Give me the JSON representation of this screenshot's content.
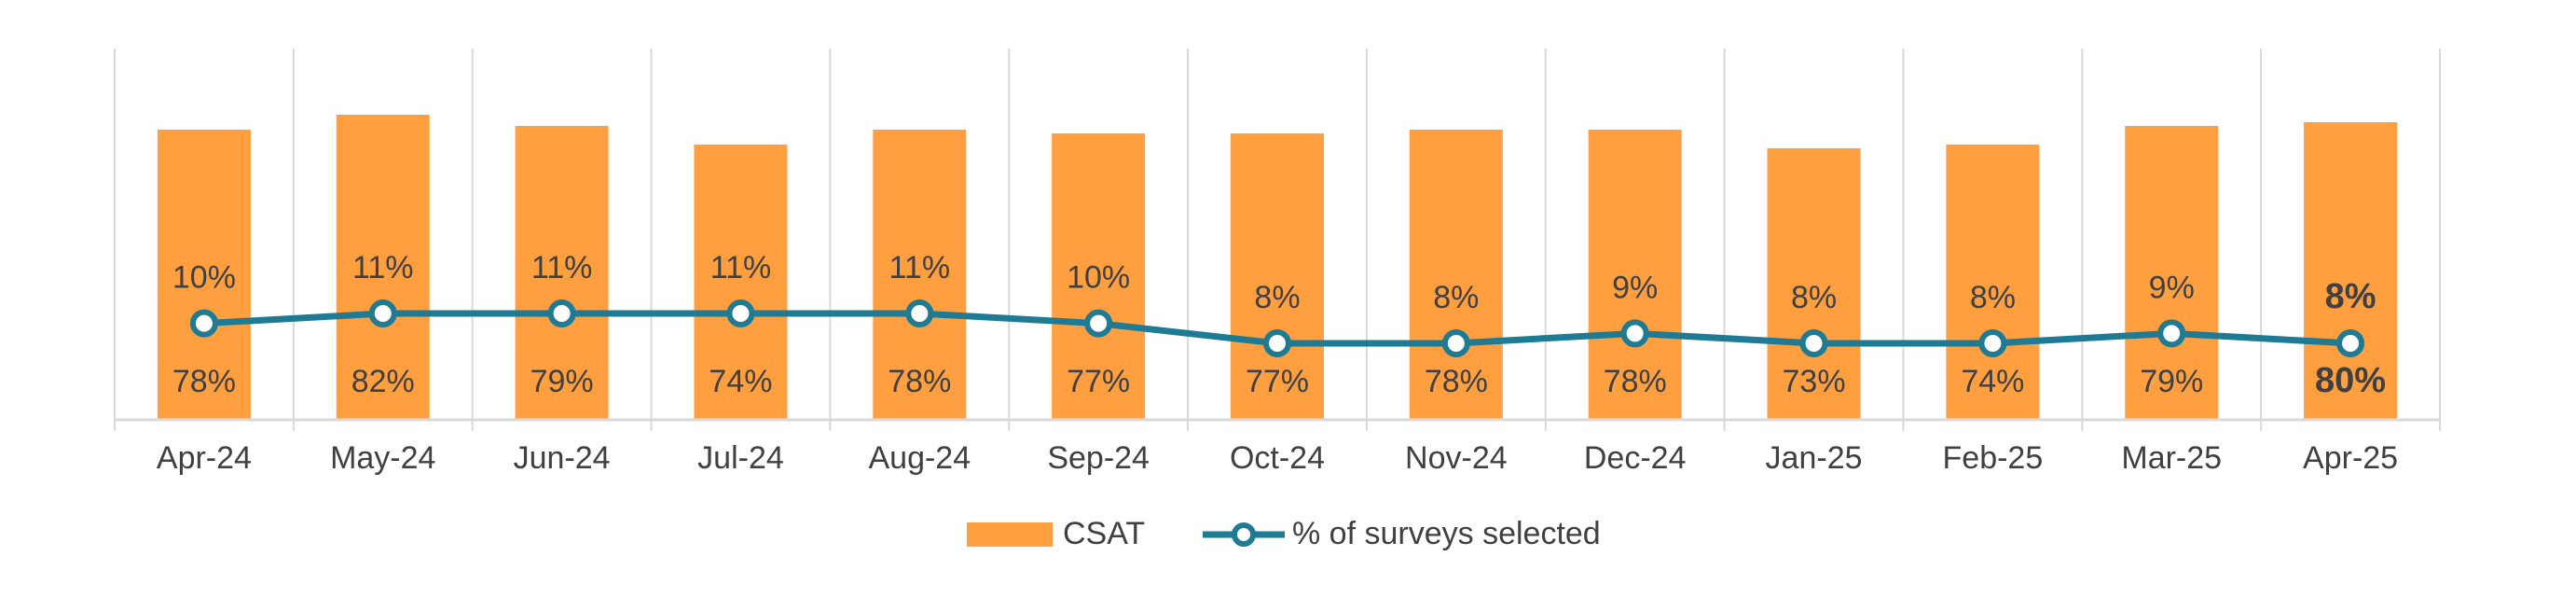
{
  "chart_data": {
    "type": "bar+line",
    "categories": [
      "Apr-24",
      "May-24",
      "Jun-24",
      "Jul-24",
      "Aug-24",
      "Sep-24",
      "Oct-24",
      "Nov-24",
      "Dec-24",
      "Jan-25",
      "Feb-25",
      "Mar-25",
      "Apr-25"
    ],
    "series": [
      {
        "name": "CSAT",
        "type": "bar",
        "values": [
          78,
          82,
          79,
          74,
          78,
          77,
          77,
          78,
          78,
          73,
          74,
          79,
          80
        ],
        "labels": [
          "78%",
          "82%",
          "79%",
          "74%",
          "78%",
          "77%",
          "77%",
          "78%",
          "78%",
          "73%",
          "74%",
          "79%",
          "80%"
        ],
        "color": "#FF9F40"
      },
      {
        "name": "% of surveys selected",
        "type": "line",
        "values": [
          10,
          11,
          11,
          11,
          11,
          10,
          8,
          8,
          9,
          8,
          8,
          9,
          8
        ],
        "labels": [
          "10%",
          "11%",
          "11%",
          "11%",
          "11%",
          "10%",
          "8%",
          "8%",
          "9%",
          "8%",
          "8%",
          "9%",
          "8%"
        ],
        "color": "#1F7A93"
      }
    ],
    "emphasized_category": "Apr-25",
    "title": "",
    "xlabel": "",
    "ylabel": "",
    "grid": true,
    "legend_position": "bottom"
  },
  "legend": {
    "csat_label": "CSAT",
    "line_label": "% of surveys selected"
  },
  "colors": {
    "bar": "#FF9F40",
    "line": "#1F7A93",
    "grid": "#D9D9D9",
    "text": "#404040"
  }
}
